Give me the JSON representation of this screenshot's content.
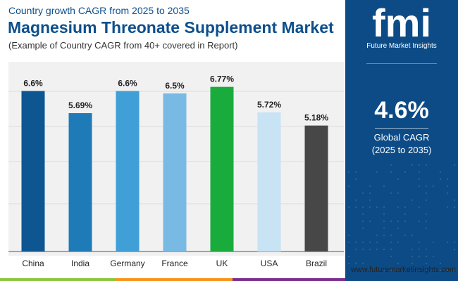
{
  "header": {
    "subtitle_top": "Country growth CAGR from 2025 to 2035",
    "title": "Magnesium Threonate Supplement Market",
    "note": "(Example of Country CAGR from 40+ covered in Report)"
  },
  "chart_data": {
    "type": "bar",
    "categories": [
      "China",
      "India",
      "Germany",
      "France",
      "UK",
      "USA",
      "Brazil"
    ],
    "values": [
      6.6,
      5.69,
      6.6,
      6.5,
      6.77,
      5.72,
      5.18
    ],
    "value_labels": [
      "6.6%",
      "5.69%",
      "6.6%",
      "6.5%",
      "6.77%",
      "5.72%",
      "5.18%"
    ],
    "colors": [
      "#0d5692",
      "#1f7ab8",
      "#3f9fd6",
      "#78bae3",
      "#1aab3d",
      "#c7e3f4",
      "#474747"
    ],
    "ylim": [
      0,
      7.8
    ],
    "grid": true,
    "xlabel": "",
    "ylabel": ""
  },
  "sidebar": {
    "logo_text": "fmi",
    "brand": "Future Market Insights",
    "cagr_value": "4.6%",
    "cagr_label": "Global CAGR",
    "cagr_period": "(2025 to 2035)"
  },
  "footer": {
    "website": "www.futuremarketinsights.com",
    "colors": [
      "#8cc63f",
      "#f7941d",
      "#7b2e8e",
      "#0d4b86"
    ]
  }
}
